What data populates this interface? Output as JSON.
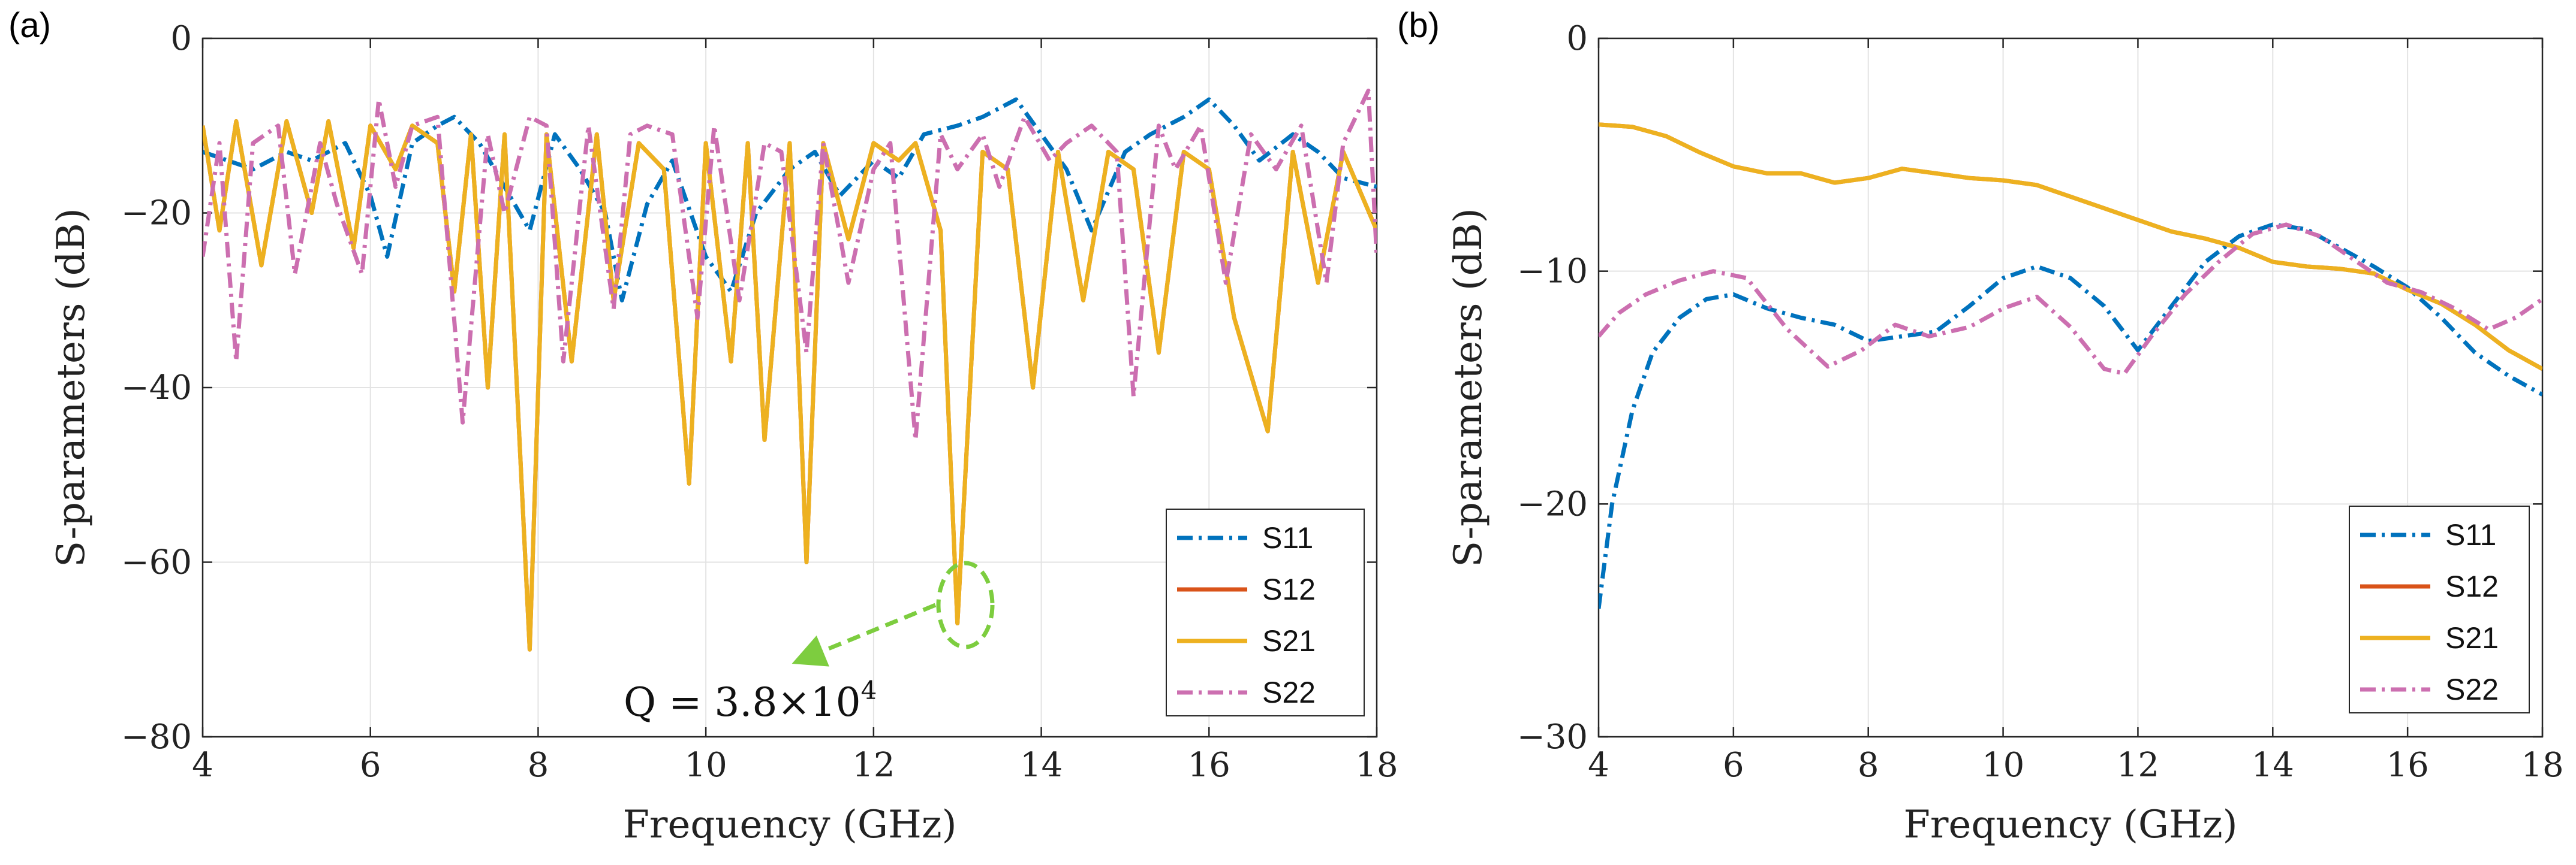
{
  "chart_data": [
    {
      "type": "line",
      "panel": "(a)",
      "xlabel": "Frequency (GHz)",
      "ylabel": "S-parameters (dB)",
      "xlim": [
        4,
        18
      ],
      "ylim": [
        -80,
        0
      ],
      "xticks": [
        4,
        6,
        8,
        10,
        12,
        14,
        16,
        18
      ],
      "yticks": [
        0,
        -20,
        -40,
        -60,
        -80
      ],
      "grid": true,
      "legend_position": "bottom-right",
      "series": [
        {
          "name": "S11",
          "color": "#0072BD",
          "style": "dash-dot",
          "x": [
            4.0,
            4.3,
            4.6,
            5.0,
            5.3,
            5.7,
            6.0,
            6.2,
            6.5,
            6.8,
            7.0,
            7.3,
            7.6,
            7.9,
            8.2,
            8.5,
            8.8,
            9.0,
            9.3,
            9.6,
            10.0,
            10.3,
            10.6,
            11.0,
            11.3,
            11.6,
            12.0,
            12.3,
            12.6,
            13.0,
            13.3,
            13.7,
            14.0,
            14.3,
            14.6,
            15.0,
            15.3,
            15.7,
            16.0,
            16.3,
            16.6,
            17.0,
            17.3,
            17.6,
            18.0
          ],
          "y": [
            -13,
            -14,
            -15,
            -13,
            -14,
            -12,
            -18,
            -25,
            -12,
            -10,
            -9,
            -12,
            -17,
            -22,
            -11,
            -15,
            -20,
            -30,
            -19,
            -14,
            -25,
            -29,
            -20,
            -15,
            -13,
            -18,
            -14,
            -16,
            -11,
            -10,
            -9,
            -7,
            -11,
            -15,
            -22,
            -13,
            -11,
            -9,
            -7,
            -10,
            -14,
            -11,
            -13,
            -16,
            -17
          ]
        },
        {
          "name": "S12",
          "color": "#D95319",
          "style": "solid",
          "x": [
            4.0,
            4.2,
            4.4,
            4.7,
            5.0,
            5.3,
            5.5,
            5.8,
            6.0,
            6.3,
            6.5,
            6.8,
            7.0,
            7.2,
            7.4,
            7.6,
            7.9,
            8.1,
            8.4,
            8.7,
            8.9,
            9.2,
            9.5,
            9.8,
            10.0,
            10.3,
            10.5,
            10.7,
            11.0,
            11.2,
            11.4,
            11.7,
            12.0,
            12.3,
            12.5,
            12.8,
            13.0,
            13.3,
            13.6,
            13.9,
            14.2,
            14.5,
            14.8,
            15.1,
            15.4,
            15.7,
            16.0,
            16.3,
            16.7,
            17.0,
            17.3,
            17.6,
            18.0
          ],
          "y": [
            -10,
            -22,
            -9.5,
            -26,
            -9.5,
            -20,
            -9.5,
            -24,
            -10,
            -15,
            -10,
            -12,
            -29,
            -11,
            -40,
            -11,
            -70,
            -11,
            -37,
            -11,
            -30,
            -12,
            -15,
            -51,
            -12,
            -37,
            -12,
            -46,
            -12,
            -60,
            -12,
            -23,
            -12,
            -14,
            -12,
            -22,
            -67,
            -13,
            -15,
            -40,
            -13,
            -30,
            -13,
            -15,
            -36,
            -13,
            -15,
            -32,
            -45,
            -13,
            -28,
            -13,
            -22
          ]
        },
        {
          "name": "S21",
          "color": "#EDB120",
          "style": "solid",
          "x": [
            4.0,
            4.2,
            4.4,
            4.7,
            5.0,
            5.3,
            5.5,
            5.8,
            6.0,
            6.3,
            6.5,
            6.8,
            7.0,
            7.2,
            7.4,
            7.6,
            7.9,
            8.1,
            8.4,
            8.7,
            8.9,
            9.2,
            9.5,
            9.8,
            10.0,
            10.3,
            10.5,
            10.7,
            11.0,
            11.2,
            11.4,
            11.7,
            12.0,
            12.3,
            12.5,
            12.8,
            13.0,
            13.3,
            13.6,
            13.9,
            14.2,
            14.5,
            14.8,
            15.1,
            15.4,
            15.7,
            16.0,
            16.3,
            16.7,
            17.0,
            17.3,
            17.6,
            18.0
          ],
          "y": [
            -10,
            -22,
            -9.5,
            -26,
            -9.5,
            -20,
            -9.5,
            -24,
            -10,
            -15,
            -10,
            -12,
            -29,
            -11,
            -40,
            -11,
            -70,
            -11,
            -37,
            -11,
            -30,
            -12,
            -15,
            -51,
            -12,
            -37,
            -12,
            -46,
            -12,
            -60,
            -12,
            -23,
            -12,
            -14,
            -12,
            -22,
            -67,
            -13,
            -15,
            -40,
            -13,
            -30,
            -13,
            -15,
            -36,
            -13,
            -15,
            -32,
            -45,
            -13,
            -28,
            -13,
            -22
          ]
        },
        {
          "name": "S22",
          "color": "#CC6FB0",
          "style": "dash-dot",
          "x": [
            4.0,
            4.2,
            4.4,
            4.6,
            4.9,
            5.1,
            5.4,
            5.6,
            5.9,
            6.1,
            6.3,
            6.5,
            6.8,
            7.1,
            7.4,
            7.6,
            7.9,
            8.1,
            8.3,
            8.6,
            8.9,
            9.1,
            9.3,
            9.6,
            9.9,
            10.1,
            10.4,
            10.7,
            10.9,
            11.2,
            11.4,
            11.7,
            12.0,
            12.2,
            12.5,
            12.8,
            13.0,
            13.3,
            13.5,
            13.8,
            14.1,
            14.3,
            14.6,
            14.9,
            15.1,
            15.4,
            15.6,
            15.9,
            16.2,
            16.5,
            16.8,
            17.1,
            17.4,
            17.6,
            17.9,
            18.0
          ],
          "y": [
            -25,
            -12,
            -37,
            -12,
            -10,
            -27,
            -12,
            -19,
            -27,
            -7,
            -17,
            -10,
            -9,
            -44,
            -11,
            -20,
            -9,
            -10,
            -37,
            -10,
            -31,
            -11,
            -10,
            -11,
            -32,
            -10,
            -30,
            -12,
            -13,
            -36,
            -12,
            -28,
            -15,
            -12,
            -46,
            -11,
            -15,
            -11,
            -17,
            -9,
            -14,
            -12,
            -10,
            -13,
            -41,
            -10,
            -15,
            -10,
            -28,
            -11,
            -15,
            -10,
            -28,
            -12,
            -6,
            -25
          ]
        }
      ],
      "annotations": [
        {
          "text": "Q = 3.8×10",
          "superscript": "4",
          "target_x": 13.0,
          "target_y": -64
        }
      ]
    },
    {
      "type": "line",
      "panel": "(b)",
      "xlabel": "Frequency (GHz)",
      "ylabel": "S-parameters (dB)",
      "xlim": [
        4,
        18
      ],
      "ylim": [
        -30,
        0
      ],
      "xticks": [
        4,
        6,
        8,
        10,
        12,
        14,
        16,
        18
      ],
      "yticks": [
        0,
        -10,
        -20,
        -30
      ],
      "grid": true,
      "legend_position": "bottom-right",
      "series": [
        {
          "name": "S11",
          "color": "#0072BD",
          "style": "dash-dot",
          "x": [
            4.0,
            4.2,
            4.5,
            4.8,
            5.2,
            5.6,
            6.0,
            6.5,
            7.0,
            7.5,
            8.0,
            8.5,
            9.0,
            9.5,
            10.0,
            10.5,
            11.0,
            11.5,
            12.0,
            12.5,
            13.0,
            13.5,
            14.0,
            14.5,
            15.0,
            15.5,
            16.0,
            16.5,
            17.0,
            17.5,
            18.0
          ],
          "y": [
            -24.5,
            -20,
            -16,
            -13.5,
            -12,
            -11.2,
            -11,
            -11.6,
            -12,
            -12.3,
            -13,
            -12.8,
            -12.6,
            -11.5,
            -10.3,
            -9.8,
            -10.3,
            -11.5,
            -13.4,
            -11.5,
            -9.6,
            -8.5,
            -8,
            -8.2,
            -9,
            -9.8,
            -10.7,
            -12,
            -13.5,
            -14.5,
            -15.3
          ]
        },
        {
          "name": "S12",
          "color": "#D95319",
          "style": "solid",
          "x": [
            4.0,
            4.5,
            5.0,
            5.5,
            6.0,
            6.5,
            7.0,
            7.5,
            8.0,
            8.5,
            9.0,
            9.5,
            10.0,
            10.5,
            11.0,
            11.5,
            12.0,
            12.5,
            13.0,
            13.5,
            14.0,
            14.5,
            15.0,
            15.5,
            16.0,
            16.5,
            17.0,
            17.5,
            18.0
          ],
          "y": [
            -3.7,
            -3.8,
            -4.2,
            -4.9,
            -5.5,
            -5.8,
            -5.8,
            -6.2,
            -6,
            -5.6,
            -5.8,
            -6,
            -6.1,
            -6.3,
            -6.8,
            -7.3,
            -7.8,
            -8.3,
            -8.6,
            -9,
            -9.6,
            -9.8,
            -9.9,
            -10.1,
            -10.8,
            -11.4,
            -12.3,
            -13.4,
            -14.2
          ]
        },
        {
          "name": "S21",
          "color": "#EDB120",
          "style": "solid",
          "x": [
            4.0,
            4.5,
            5.0,
            5.5,
            6.0,
            6.5,
            7.0,
            7.5,
            8.0,
            8.5,
            9.0,
            9.5,
            10.0,
            10.5,
            11.0,
            11.5,
            12.0,
            12.5,
            13.0,
            13.5,
            14.0,
            14.5,
            15.0,
            15.5,
            16.0,
            16.5,
            17.0,
            17.5,
            18.0
          ],
          "y": [
            -3.7,
            -3.8,
            -4.2,
            -4.9,
            -5.5,
            -5.8,
            -5.8,
            -6.2,
            -6,
            -5.6,
            -5.8,
            -6,
            -6.1,
            -6.3,
            -6.8,
            -7.3,
            -7.8,
            -8.3,
            -8.6,
            -9,
            -9.6,
            -9.8,
            -9.9,
            -10.1,
            -10.8,
            -11.4,
            -12.3,
            -13.4,
            -14.2
          ]
        },
        {
          "name": "S22",
          "color": "#CC6FB0",
          "style": "dash-dot",
          "x": [
            4.0,
            4.3,
            4.7,
            5.2,
            5.7,
            6.2,
            6.8,
            7.4,
            7.9,
            8.4,
            8.9,
            9.5,
            10.0,
            10.5,
            11.0,
            11.5,
            11.8,
            12.2,
            12.7,
            13.2,
            13.7,
            14.2,
            14.7,
            15.2,
            15.7,
            16.2,
            16.7,
            17.2,
            17.6,
            18.0
          ],
          "y": [
            -12.8,
            -11.8,
            -11,
            -10.4,
            -10,
            -10.3,
            -12.5,
            -14.1,
            -13.4,
            -12.3,
            -12.8,
            -12.4,
            -11.6,
            -11.1,
            -12.4,
            -14.2,
            -14.4,
            -12.8,
            -11,
            -9.6,
            -8.4,
            -8,
            -8.5,
            -9.5,
            -10.5,
            -10.9,
            -11.6,
            -12.5,
            -12,
            -11.2
          ]
        }
      ]
    }
  ]
}
